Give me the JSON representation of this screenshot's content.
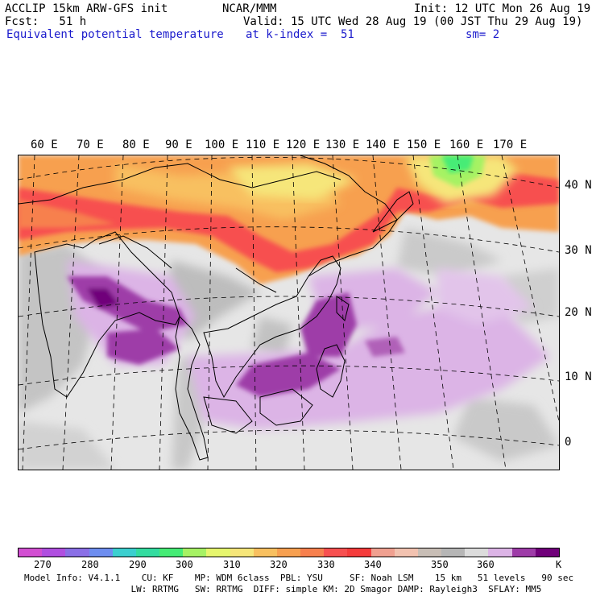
{
  "header": {
    "model_line": "ACCLIP 15km ARW-GFS init",
    "center_org": "NCAR/MMM",
    "init_line": "Init: 12 UTC Mon 26 Aug 19",
    "fcst_line": "Fcst:   51 h",
    "valid_line": "Valid: 15 UTC Wed 28 Aug 19 (00 JST Thu 29 Aug 19)",
    "field_name": "Equivalent potential temperature",
    "level_line": "at k-index =  51",
    "smooth_line": "sm= 2"
  },
  "map": {
    "longitude_labels": [
      "60 E",
      "70 E",
      "80 E",
      "90 E",
      "100 E",
      "110 E",
      "120 E",
      "130 E",
      "140 E",
      "150 E",
      "160 E",
      "170 E"
    ],
    "latitude_labels": [
      "40 N",
      "30 N",
      "20 N",
      "10 N",
      "0"
    ]
  },
  "colorbar": {
    "colors": [
      "#d24fd2",
      "#b04fe0",
      "#8a6fe6",
      "#6e8ef0",
      "#3ccfcf",
      "#34dca0",
      "#46ec76",
      "#a6f264",
      "#e6f66e",
      "#f6e67a",
      "#f8c060",
      "#f7a050",
      "#f7804e",
      "#f75050",
      "#f53c3c",
      "#f0a090",
      "#f2c2b0",
      "#c8beb6",
      "#b6b6b6",
      "#dcdcdc",
      "#dcb4e6",
      "#9e3ca8",
      "#70007a"
    ],
    "tick_labels": [
      "270",
      "280",
      "290",
      "300",
      "310",
      "320",
      "330",
      "340",
      "350",
      "360"
    ],
    "unit_label": "K"
  },
  "footer": {
    "line1": "Model Info: V4.1.1    CU: KF    MP: WDM 6class  PBL: YSU     SF: Noah LSM    15 km   51 levels   90 sec",
    "line2": "                    LW: RRTMG   SW: RRTMG  DIFF: simple KM: 2D Smagor DAMP: Rayleigh3  SFLAY: MM5"
  }
}
